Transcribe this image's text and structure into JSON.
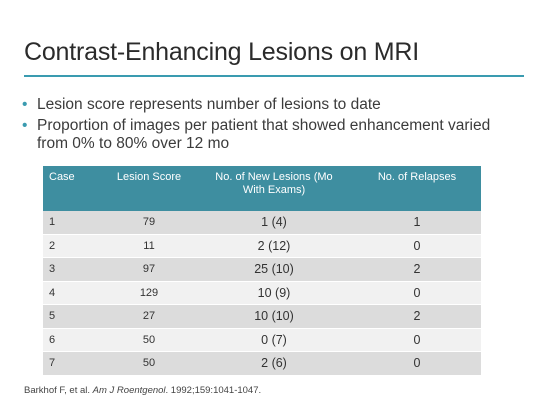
{
  "title": "Contrast-Enhancing Lesions on MRI",
  "bullets": [
    "Lesion score represents number of lesions to date",
    "Proportion of images per patient that showed enhancement varied from 0% to 80% over 12 mo"
  ],
  "table": {
    "headers": [
      "Case",
      "Lesion Score",
      "No. of New Lesions (Mo With Exams)",
      "No. of Relapses"
    ],
    "rows": [
      [
        "1",
        "79",
        "1 (4)",
        "1"
      ],
      [
        "2",
        "11",
        "2 (12)",
        "0"
      ],
      [
        "3",
        "97",
        "25 (10)",
        "2"
      ],
      [
        "4",
        "129",
        "10 (9)",
        "0"
      ],
      [
        "5",
        "27",
        "10 (10)",
        "2"
      ],
      [
        "6",
        "50",
        "0 (7)",
        "0"
      ],
      [
        "7",
        "50",
        "2 (6)",
        "0"
      ]
    ]
  },
  "citation": {
    "authors": "Barkhof F, et al. ",
    "journal": "Am J Roentgenol",
    "details": ". 1992;159:1041-1047."
  },
  "colors": {
    "accent": "#3a9bb0",
    "header_bg": "#3e8ea0",
    "row_odd": "#dcdcdc",
    "row_even": "#f1f1f1"
  }
}
